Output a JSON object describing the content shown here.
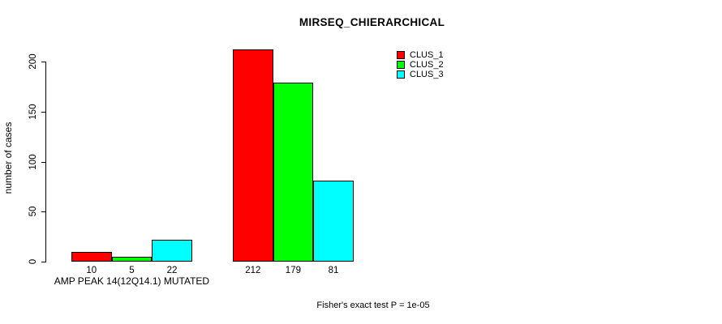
{
  "chart_data": {
    "type": "bar",
    "title": "MIRSEQ_CHIERARCHICAL",
    "ylabel": "number of cases",
    "xlabel": "",
    "ylim": [
      0,
      200
    ],
    "yticks": [
      0,
      50,
      100,
      150,
      200
    ],
    "grid": false,
    "legend_position": "top-right",
    "series": [
      {
        "name": "CLUS_1",
        "color": "#FF0000"
      },
      {
        "name": "CLUS_2",
        "color": "#00FF00"
      },
      {
        "name": "CLUS_3",
        "color": "#00FFFF"
      }
    ],
    "groups": [
      {
        "label": "AMP PEAK 14(12Q14.1) MUTATED",
        "values": [
          10,
          5,
          22
        ]
      },
      {
        "label": "",
        "values": [
          212,
          179,
          81
        ]
      }
    ],
    "bar_value_labels_shown": true,
    "annotation": "Fisher's exact test P = 1e-05",
    "colors": {
      "background": "#FFFFFF",
      "axis": "#000000",
      "text": "#000000"
    }
  }
}
